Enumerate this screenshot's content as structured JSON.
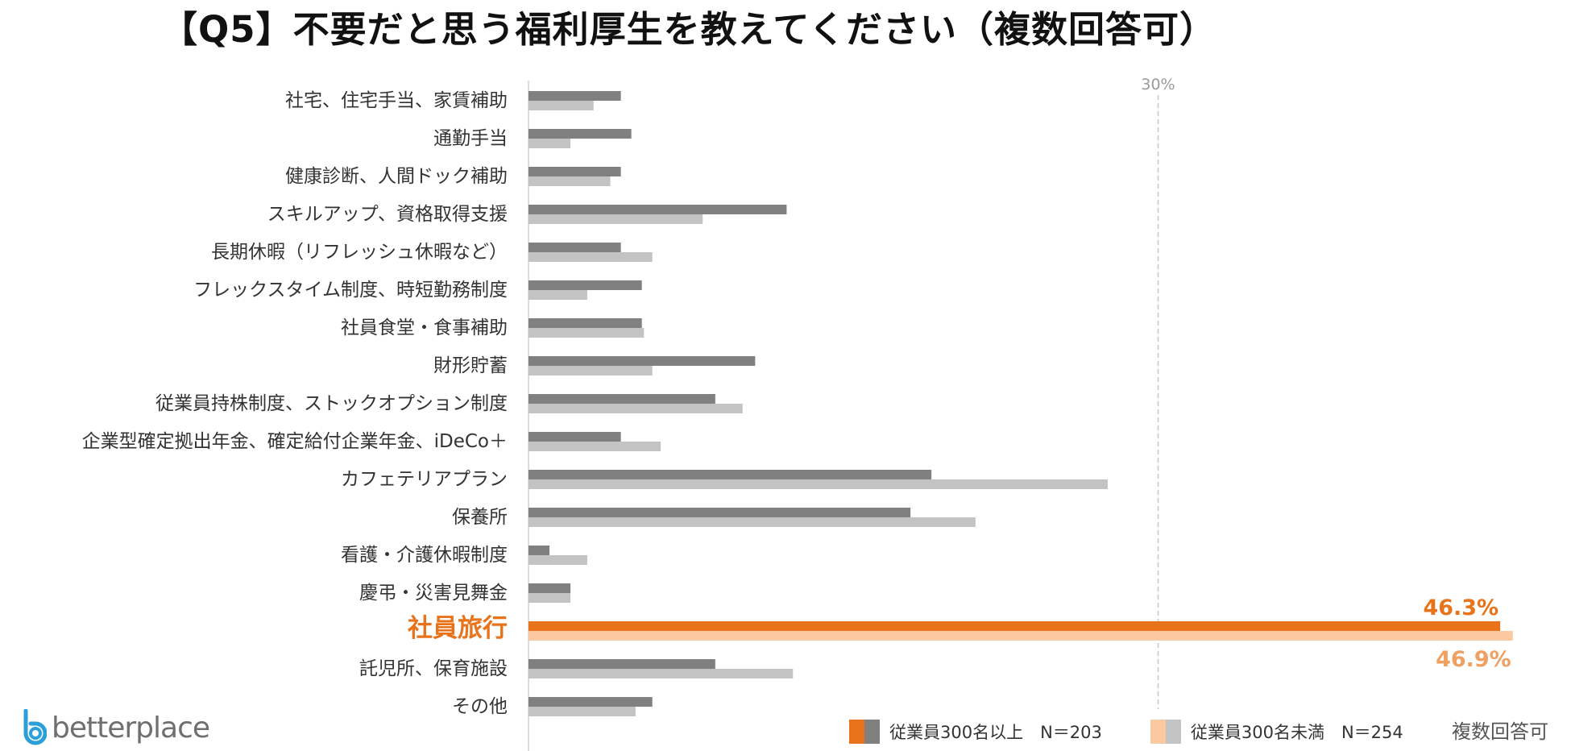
{
  "title": "【Q5】不要だと思う福利厚生を教えてください（複数回答可）",
  "footnote": "複数回答可",
  "logo": {
    "text": "betterplace",
    "icon": "betterplace-b-icon"
  },
  "colors": {
    "dark_gray": "#808080",
    "light_gray": "#c3c3c3",
    "orange": "#e8731a",
    "peach": "#fbc9a0",
    "grid": "#c8c8c8",
    "axis": "#d0d0d0",
    "highlight_text": "#e8731a"
  },
  "legend": {
    "series_a": "従業員300名以上　N＝203",
    "series_b": "従業員300名未満　N＝254"
  },
  "chart_data": {
    "type": "bar",
    "orientation": "horizontal",
    "categories": [
      "社宅、住宅手当、家賃補助",
      "通勤手当",
      "健康診断、人間ドック補助",
      "スキルアップ、資格取得支援",
      "長期休暇（リフレッシュ休暇など）",
      "フレックスタイム制度、時短勤務制度",
      "社員食堂・食事補助",
      "財形貯蓄",
      "従業員持株制度、ストックオプション制度",
      "企業型確定拠出年金、確定給付企業年金、iDeCo＋",
      "カフェテリアプラン",
      "保養所",
      "看護・介護休暇制度",
      "慶弔・災害見舞金",
      "社員旅行",
      "託児所、保育施設",
      "その他"
    ],
    "highlight_category": "社員旅行",
    "series": [
      {
        "name": "従業員300名以上　N＝203",
        "values": [
          4.4,
          4.9,
          4.4,
          12.3,
          4.4,
          5.4,
          5.4,
          10.8,
          8.9,
          4.4,
          19.2,
          18.2,
          1.0,
          2.0,
          46.3,
          8.9,
          5.9
        ]
      },
      {
        "name": "従業員300名未満　N＝254",
        "values": [
          3.1,
          2.0,
          3.9,
          8.3,
          5.9,
          2.8,
          5.5,
          5.9,
          10.2,
          6.3,
          27.6,
          21.3,
          2.8,
          2.0,
          46.9,
          12.6,
          5.1
        ]
      }
    ],
    "reference_line": {
      "value": 30,
      "label": "30%"
    },
    "data_labels": {
      "series_a": "46.3%",
      "series_b": "46.9%"
    },
    "xlim": [
      0,
      47
    ],
    "grid": false
  }
}
